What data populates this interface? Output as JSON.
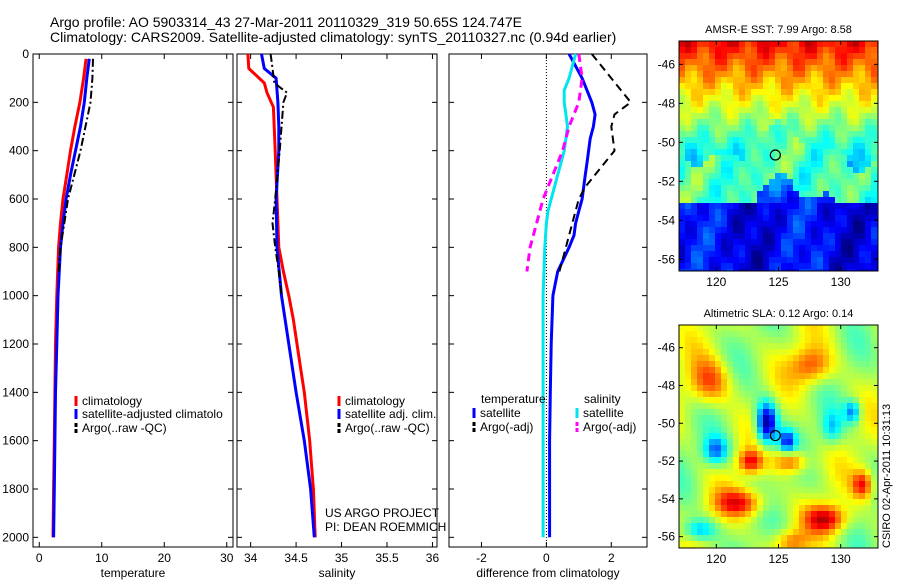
{
  "header": {
    "line1": "Argo profile: AO 5903314_43 27-Mar-2011 20110329_319 50.65S 124.747E",
    "line2": "Climatology: CARS2009. Satellite-adjusted climatology: synTS_20110327.nc (0.94d earlier)"
  },
  "credit": {
    "project": "US ARGO PROJECT",
    "pi": "PI: DEAN ROEMMICH",
    "stamp": "CSIRO 02-Apr-2011 10:31:13"
  },
  "colors": {
    "climatology": "#ff0000",
    "satellite": "#0000ff",
    "argo": "#000000",
    "sal_satellite": "#00e5ee",
    "sal_argo": "#ff00ff"
  },
  "chart_data": [
    {
      "type": "line",
      "xlabel": "temperature",
      "ylabel": "",
      "xlim": [
        -1,
        31
      ],
      "ylim": [
        2040,
        0
      ],
      "xticks": [
        0,
        10,
        20,
        30
      ],
      "yticks": [
        0,
        200,
        400,
        600,
        800,
        1000,
        1200,
        1400,
        1600,
        1800,
        2000
      ],
      "legend": [
        "climatology",
        "satellite-adjusted climatolo",
        "Argo(..raw -QC)"
      ],
      "series": [
        {
          "name": "climatology",
          "y": [
            20,
            100,
            200,
            300,
            400,
            500,
            600,
            700,
            800,
            1000,
            1200,
            1400,
            1600,
            1800,
            2000
          ],
          "x": [
            7.5,
            7.1,
            6.5,
            5.7,
            5.0,
            4.4,
            3.8,
            3.4,
            3.1,
            2.8,
            2.6,
            2.5,
            2.4,
            2.3,
            2.2
          ]
        },
        {
          "name": "satellite-adjusted climatolo",
          "y": [
            20,
            100,
            200,
            300,
            400,
            500,
            600,
            700,
            800,
            1000,
            1200,
            1400,
            1600,
            1800,
            2000
          ],
          "x": [
            8.0,
            7.6,
            7.2,
            6.6,
            5.8,
            5.0,
            4.3,
            3.8,
            3.4,
            3.0,
            2.8,
            2.6,
            2.5,
            2.4,
            2.3
          ]
        },
        {
          "name": "Argo(..raw -QC)",
          "y": [
            20,
            100,
            200,
            300,
            400,
            500,
            600,
            700,
            800,
            900
          ],
          "x": [
            8.6,
            8.5,
            8.2,
            7.4,
            6.6,
            5.6,
            4.6,
            4.0,
            3.4,
            3.1
          ]
        }
      ]
    },
    {
      "type": "line",
      "xlabel": "salinity",
      "xlim": [
        33.85,
        36.05
      ],
      "ylim": [
        2040,
        0
      ],
      "xticks": [
        34,
        34.5,
        35,
        35.5,
        36
      ],
      "legend": [
        "climatology",
        "satellite adj. clim.",
        "Argo(..raw -QC)"
      ],
      "series": [
        {
          "name": "climatology",
          "y": [
            0,
            60,
            120,
            160,
            220,
            400,
            600,
            800,
            900,
            1000,
            1100,
            1200,
            1300,
            1400,
            1500,
            1600,
            1700,
            1800,
            1900,
            2000
          ],
          "x": [
            33.97,
            33.98,
            34.15,
            34.18,
            34.25,
            34.27,
            34.29,
            34.31,
            34.36,
            34.42,
            34.47,
            34.51,
            34.55,
            34.59,
            34.62,
            34.65,
            34.67,
            34.69,
            34.7,
            34.71
          ]
        },
        {
          "name": "satellite adj. clim.",
          "y": [
            0,
            60,
            100,
            200,
            300,
            400,
            600,
            800,
            1000,
            1200,
            1400,
            1600,
            1800,
            2000
          ],
          "x": [
            34.12,
            34.15,
            34.28,
            34.3,
            34.31,
            34.31,
            34.28,
            34.29,
            34.34,
            34.42,
            34.5,
            34.59,
            34.66,
            34.7
          ]
        },
        {
          "name": "Argo(..raw -QC)",
          "y": [
            0,
            60,
            120,
            160,
            200,
            400,
            600,
            700,
            800,
            900,
            1000
          ],
          "x": [
            34.22,
            34.24,
            34.26,
            34.4,
            34.36,
            34.32,
            34.27,
            34.24,
            34.27,
            34.31,
            34.34
          ]
        }
      ]
    },
    {
      "type": "line",
      "xlabel": "difference from climatology",
      "xlim": [
        -3,
        3.1
      ],
      "ylim": [
        2040,
        0
      ],
      "xticks": [
        -2,
        0,
        2
      ],
      "legend_headers": [
        "temperature",
        "salinity"
      ],
      "legend": [
        "satellite",
        "Argo(-adj)",
        "satellite",
        "Argo(-adj)"
      ],
      "series": [
        {
          "name": "satellite",
          "group": "temperature",
          "y": [
            0,
            50,
            100,
            150,
            200,
            250,
            300,
            350,
            400,
            450,
            500,
            550,
            600,
            650,
            700,
            750,
            800,
            900,
            1000,
            1200,
            1400,
            1600,
            1800,
            2000
          ],
          "x": [
            0.7,
            0.9,
            1.1,
            1.25,
            1.4,
            1.5,
            1.45,
            1.35,
            1.3,
            1.25,
            1.2,
            1.15,
            1.1,
            1.0,
            0.9,
            0.85,
            0.7,
            0.35,
            0.2,
            0.15,
            0.12,
            0.1,
            0.1,
            0.1
          ]
        },
        {
          "name": "Argo(-adj)",
          "group": "temperature",
          "y": [
            0,
            50,
            100,
            150,
            200,
            250,
            300,
            350,
            400,
            450,
            500,
            550,
            600,
            700,
            800,
            900
          ],
          "x": [
            1.4,
            1.7,
            2.0,
            2.3,
            2.6,
            2.1,
            2.0,
            2.05,
            2.1,
            1.8,
            1.5,
            1.2,
            1.0,
            0.8,
            0.6,
            0.4
          ]
        },
        {
          "name": "satellite",
          "group": "salinity",
          "y": [
            0,
            50,
            100,
            150,
            200,
            250,
            300,
            350,
            400,
            450,
            500,
            550,
            600,
            650,
            700,
            800,
            1000,
            1200,
            1400,
            1600,
            1800,
            2000
          ],
          "x": [
            0.9,
            0.8,
            0.7,
            0.55,
            0.55,
            0.6,
            0.65,
            0.6,
            0.55,
            0.45,
            0.35,
            0.25,
            0.15,
            0.05,
            0.0,
            -0.05,
            -0.1,
            -0.1,
            -0.1,
            -0.1,
            -0.1,
            -0.1
          ]
        },
        {
          "name": "Argo(-adj)",
          "group": "salinity",
          "y": [
            0,
            100,
            200,
            300,
            400,
            500,
            600,
            700,
            800,
            900
          ],
          "x": [
            1.0,
            1.1,
            1.0,
            0.7,
            0.5,
            0.2,
            -0.1,
            -0.3,
            -0.5,
            -0.6
          ]
        }
      ]
    },
    {
      "type": "heatmap",
      "title": "AMSR-E SST: 7.99 Argo: 8.58",
      "xlim": [
        117,
        133
      ],
      "ylim": [
        -56.6,
        -44.8
      ],
      "xticks": [
        120,
        125,
        130
      ],
      "yticks": [
        -46,
        -48,
        -50,
        -52,
        -54,
        -56
      ],
      "marker": {
        "lon": 124.747,
        "lat": -50.65
      }
    },
    {
      "type": "heatmap",
      "title": "Altimetric SLA: 0.12 Argo: 0.14",
      "xlim": [
        117,
        133
      ],
      "ylim": [
        -56.6,
        -44.8
      ],
      "xticks": [
        120,
        125,
        130
      ],
      "yticks": [
        -46,
        -48,
        -50,
        -52,
        -54,
        -56
      ],
      "marker": {
        "lon": 124.747,
        "lat": -50.65
      }
    }
  ]
}
